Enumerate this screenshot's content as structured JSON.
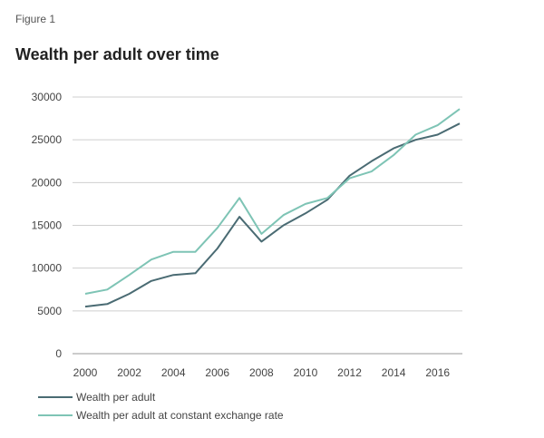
{
  "figure_label": "Figure 1",
  "chart_data": {
    "type": "line",
    "title": "Wealth per adult over time",
    "xlabel": "",
    "ylabel": "",
    "x": [
      2000,
      2001,
      2002,
      2003,
      2004,
      2005,
      2006,
      2007,
      2008,
      2009,
      2010,
      2011,
      2012,
      2013,
      2014,
      2015,
      2016,
      2017
    ],
    "xticks": [
      "2000",
      "2002",
      "2004",
      "2006",
      "2008",
      "2010",
      "2012",
      "2014",
      "2016"
    ],
    "yticks": [
      "0",
      "5000",
      "10000",
      "15000",
      "20000",
      "25000",
      "30000"
    ],
    "xlim": [
      2000,
      2017
    ],
    "ylim": [
      0,
      30000
    ],
    "grid": "horizontal",
    "legend_position": "bottom-left",
    "series": [
      {
        "name": "Wealth per adult",
        "color": "#4a6b73",
        "values": [
          5500,
          5800,
          7000,
          8500,
          9200,
          9400,
          12300,
          16000,
          13100,
          15000,
          16400,
          18000,
          20800,
          22500,
          24000,
          25000,
          25600,
          26900
        ]
      },
      {
        "name": "Wealth per adult at constant exchange rate",
        "color": "#7ec4b5",
        "values": [
          7000,
          7500,
          9200,
          11000,
          11900,
          11900,
          14700,
          18200,
          14000,
          16200,
          17500,
          18200,
          20500,
          21300,
          23200,
          25600,
          26700,
          28600
        ]
      }
    ]
  }
}
